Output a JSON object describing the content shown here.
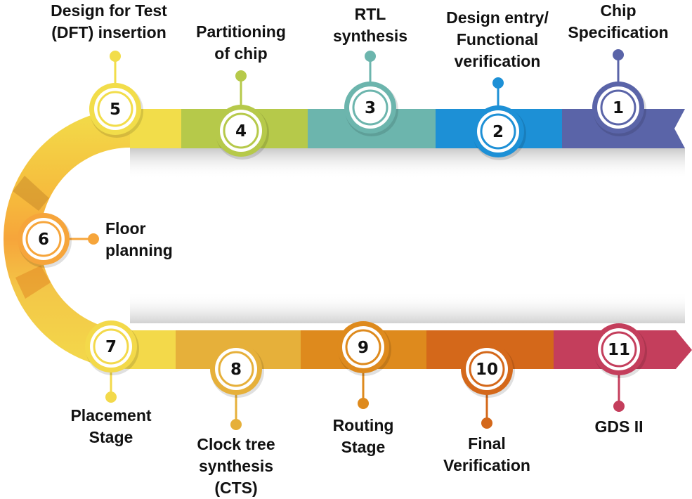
{
  "colors": {
    "background": "#ffffff",
    "text": "#111111",
    "shadow": "#c8c8c8"
  },
  "steps": [
    {
      "number": "1",
      "label": "Chip\nSpecification",
      "color": "#5a64a8"
    },
    {
      "number": "2",
      "label": "Design entry/\nFunctional\nverification",
      "color": "#1d90d6"
    },
    {
      "number": "3",
      "label": "RTL\nsynthesis",
      "color": "#6cb5ad"
    },
    {
      "number": "4",
      "label": "Partitioning\nof chip",
      "color": "#b6c94a"
    },
    {
      "number": "5",
      "label": "Design for Test\n(DFT) insertion",
      "color": "#f2dd4a"
    },
    {
      "number": "6",
      "label": "Floor\nplanning",
      "color": "#f6a53b"
    },
    {
      "number": "7",
      "label": "Placement\nStage",
      "color": "#f3d94a"
    },
    {
      "number": "8",
      "label": "Clock tree\nsynthesis (CTS)",
      "color": "#e6b03a"
    },
    {
      "number": "9",
      "label": "Routing\nStage",
      "color": "#de8a1d"
    },
    {
      "number": "10",
      "label": "Final\nVerification",
      "color": "#d4681a"
    },
    {
      "number": "11",
      "label": "GDS II",
      "color": "#c43e5c"
    }
  ]
}
